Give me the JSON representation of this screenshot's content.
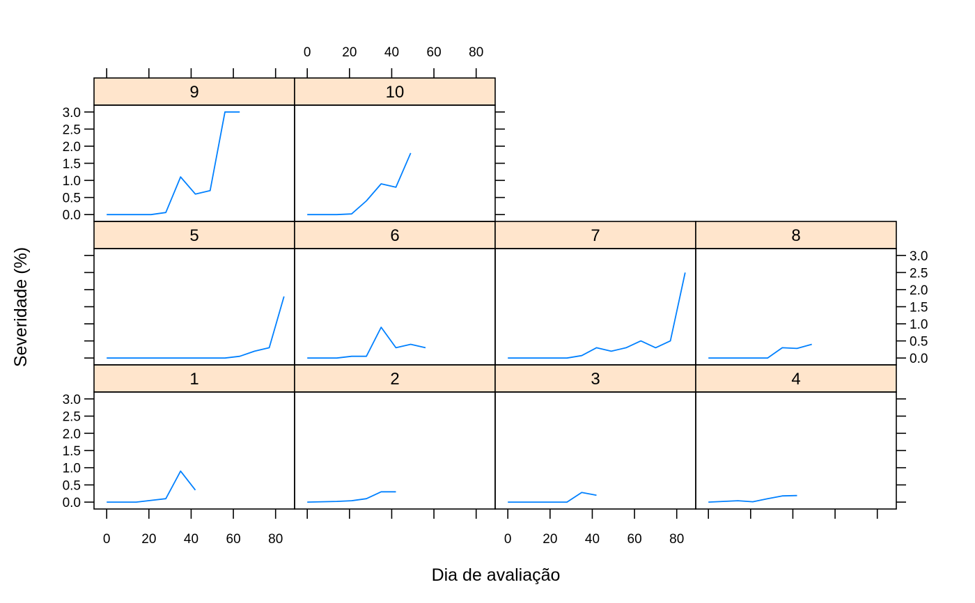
{
  "chart_data": {
    "type": "line",
    "xlabel": "Dia de avaliação",
    "ylabel": "Severidade (%)",
    "xlim": [
      -6,
      89
    ],
    "ylim": [
      -0.2,
      3.2
    ],
    "x_ticks": [
      0,
      20,
      40,
      60,
      80
    ],
    "y_ticks": [
      0.0,
      0.5,
      1.0,
      1.5,
      2.0,
      2.5,
      3.0
    ],
    "x_tick_labels": [
      "0",
      "20",
      "40",
      "60",
      "80"
    ],
    "y_tick_labels": [
      "0.0",
      "0.5",
      "1.0",
      "1.5",
      "2.0",
      "2.5",
      "3.0"
    ],
    "line_color": "#0080ff",
    "strip_color": "#ffe5cc",
    "panels": [
      {
        "label": "1",
        "x": [
          0,
          7,
          14,
          21,
          28,
          35,
          42
        ],
        "y": [
          0.0,
          0.0,
          0.0,
          0.05,
          0.1,
          0.9,
          0.35
        ]
      },
      {
        "label": "2",
        "x": [
          0,
          7,
          14,
          21,
          28,
          35,
          42
        ],
        "y": [
          0.0,
          0.01,
          0.02,
          0.04,
          0.1,
          0.3,
          0.3
        ]
      },
      {
        "label": "3",
        "x": [
          0,
          7,
          14,
          21,
          28,
          35,
          42
        ],
        "y": [
          0.0,
          0.0,
          0.0,
          0.0,
          0.0,
          0.28,
          0.2
        ]
      },
      {
        "label": "4",
        "x": [
          0,
          7,
          14,
          21,
          28,
          35,
          42
        ],
        "y": [
          0.0,
          0.02,
          0.04,
          0.01,
          0.1,
          0.18,
          0.19
        ]
      },
      {
        "label": "5",
        "x": [
          0,
          7,
          14,
          21,
          28,
          35,
          42,
          49,
          56,
          63,
          70,
          77,
          84
        ],
        "y": [
          0.0,
          0.0,
          0.0,
          0.0,
          0.0,
          0.0,
          0.0,
          0.0,
          0.0,
          0.05,
          0.2,
          0.3,
          1.8
        ]
      },
      {
        "label": "6",
        "x": [
          0,
          7,
          14,
          21,
          28,
          35,
          42,
          49,
          56
        ],
        "y": [
          0.0,
          0.0,
          0.0,
          0.05,
          0.05,
          0.9,
          0.3,
          0.4,
          0.3
        ]
      },
      {
        "label": "7",
        "x": [
          0,
          7,
          14,
          21,
          28,
          35,
          42,
          49,
          56,
          63,
          70,
          77,
          84
        ],
        "y": [
          0.0,
          0.0,
          0.0,
          0.0,
          0.0,
          0.07,
          0.3,
          0.2,
          0.3,
          0.5,
          0.3,
          0.5,
          2.5
        ]
      },
      {
        "label": "8",
        "x": [
          0,
          7,
          14,
          21,
          28,
          35,
          42,
          49
        ],
        "y": [
          0.0,
          0.0,
          0.0,
          0.0,
          0.0,
          0.3,
          0.28,
          0.4
        ]
      },
      {
        "label": "9",
        "x": [
          0,
          7,
          14,
          21,
          28,
          35,
          42,
          49,
          56,
          63
        ],
        "y": [
          0.0,
          0.0,
          0.0,
          0.0,
          0.06,
          1.1,
          0.6,
          0.7,
          3.0,
          3.0
        ]
      },
      {
        "label": "10",
        "x": [
          0,
          7,
          14,
          21,
          28,
          35,
          42,
          49
        ],
        "y": [
          0.0,
          0.0,
          0.0,
          0.02,
          0.4,
          0.9,
          0.8,
          1.8
        ]
      }
    ]
  }
}
